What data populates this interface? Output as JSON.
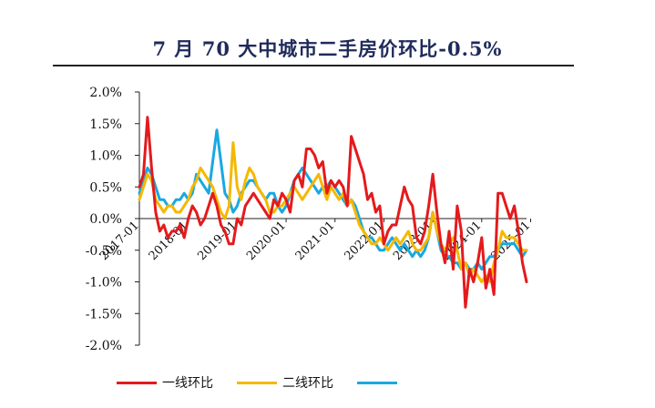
{
  "title": "7 月 70 大中城市二手房价环比-0.5%",
  "chart_data": {
    "type": "line",
    "title": "7 月 70 大中城市二手房价环比-0.5%",
    "ylim": [
      -2.0,
      2.0
    ],
    "yticks": [
      "2.0%",
      "1.5%",
      "1.0%",
      "0.5%",
      "0.0%",
      "-0.5%",
      "-1.0%",
      "-1.5%",
      "-2.0%"
    ],
    "xticks": [
      "2017-01",
      "2018-01",
      "2019-01",
      "2020-01",
      "2021-01",
      "2022-01",
      "2023-01",
      "2024-01",
      "2025-01"
    ],
    "start": "2017-01",
    "end": "2025-07",
    "series": [
      {
        "name": "一线环比",
        "color": "#e41a1c",
        "values": [
          0.5,
          0.7,
          1.6,
          0.8,
          0.1,
          -0.2,
          -0.1,
          -0.3,
          -0.2,
          -0.2,
          -0.1,
          -0.3,
          0.0,
          0.2,
          0.1,
          -0.1,
          0.0,
          0.2,
          0.4,
          0.2,
          -0.1,
          -0.2,
          -0.4,
          -0.4,
          0.0,
          -0.1,
          0.2,
          0.3,
          0.4,
          0.3,
          0.2,
          0.1,
          0.0,
          0.3,
          0.2,
          0.4,
          0.3,
          0.1,
          0.6,
          0.7,
          0.5,
          1.1,
          1.1,
          1.0,
          0.8,
          0.9,
          0.4,
          0.6,
          0.5,
          0.6,
          0.5,
          0.2,
          1.3,
          1.1,
          0.9,
          0.7,
          0.3,
          0.4,
          0.1,
          0.2,
          -0.4,
          -0.2,
          -0.1,
          -0.1,
          0.2,
          0.5,
          0.3,
          0.2,
          -0.3,
          -0.4,
          -0.2,
          0.2,
          0.7,
          0.1,
          -0.4,
          -0.7,
          -0.2,
          -0.8,
          0.2,
          -0.2,
          -1.4,
          -0.8,
          -1.0,
          -0.7,
          -0.3,
          -1.1,
          -0.8,
          -1.2,
          0.4,
          0.4,
          0.2,
          0.0,
          0.2,
          -0.2,
          -0.7,
          -1.0
        ]
      },
      {
        "name": "二线环比",
        "color": "#f5b800",
        "values": [
          0.3,
          0.5,
          0.7,
          0.6,
          0.3,
          0.2,
          0.1,
          0.2,
          0.2,
          0.1,
          0.1,
          0.2,
          0.3,
          0.5,
          0.6,
          0.8,
          0.7,
          0.6,
          0.5,
          0.3,
          0.1,
          0.0,
          0.2,
          1.2,
          0.5,
          0.3,
          0.6,
          0.8,
          0.7,
          0.5,
          0.4,
          0.3,
          0.1,
          0.1,
          0.2,
          0.2,
          0.3,
          0.4,
          0.5,
          0.4,
          0.3,
          0.4,
          0.5,
          0.6,
          0.7,
          0.5,
          0.3,
          0.5,
          0.4,
          0.3,
          0.4,
          0.2,
          0.3,
          0.1,
          -0.1,
          -0.2,
          -0.3,
          -0.4,
          -0.4,
          -0.3,
          -0.4,
          -0.5,
          -0.4,
          -0.3,
          -0.4,
          -0.3,
          -0.2,
          -0.4,
          -0.5,
          -0.5,
          -0.4,
          -0.3,
          0.1,
          -0.2,
          -0.4,
          -0.5,
          -0.4,
          -0.3,
          -0.5,
          -0.8,
          -0.7,
          -0.9,
          -0.8,
          -0.9,
          -1.0,
          -0.9,
          -1.0,
          -0.7,
          -0.5,
          -0.2,
          -0.3,
          -0.3,
          -0.3,
          -0.4,
          -0.5,
          -0.5
        ]
      },
      {
        "name": "",
        "color": "#1aa8e0",
        "values": [
          0.4,
          0.6,
          0.8,
          0.7,
          0.5,
          0.3,
          0.3,
          0.2,
          0.2,
          0.3,
          0.3,
          0.4,
          0.3,
          0.4,
          0.7,
          0.6,
          0.5,
          0.4,
          0.9,
          1.4,
          0.9,
          0.4,
          0.3,
          0.1,
          0.2,
          0.4,
          0.5,
          0.6,
          0.6,
          0.5,
          0.4,
          0.3,
          0.4,
          0.4,
          0.2,
          0.1,
          0.2,
          0.4,
          0.6,
          0.7,
          0.8,
          0.7,
          0.6,
          0.5,
          0.4,
          0.5,
          0.5,
          0.6,
          0.5,
          0.4,
          0.3,
          0.2,
          0.3,
          0.2,
          0.0,
          -0.2,
          -0.3,
          -0.3,
          -0.4,
          -0.5,
          -0.5,
          -0.4,
          -0.3,
          -0.4,
          -0.5,
          -0.4,
          -0.5,
          -0.6,
          -0.5,
          -0.6,
          -0.5,
          -0.3,
          0.1,
          -0.2,
          -0.5,
          -0.6,
          -0.6,
          -0.7,
          -0.7,
          -0.8,
          -0.7,
          -0.8,
          -0.8,
          -0.7,
          -0.8,
          -0.7,
          -0.6,
          -0.6,
          -0.5,
          -0.4,
          -0.4,
          -0.4,
          -0.4,
          -0.5,
          -0.6,
          -0.5
        ]
      }
    ]
  }
}
